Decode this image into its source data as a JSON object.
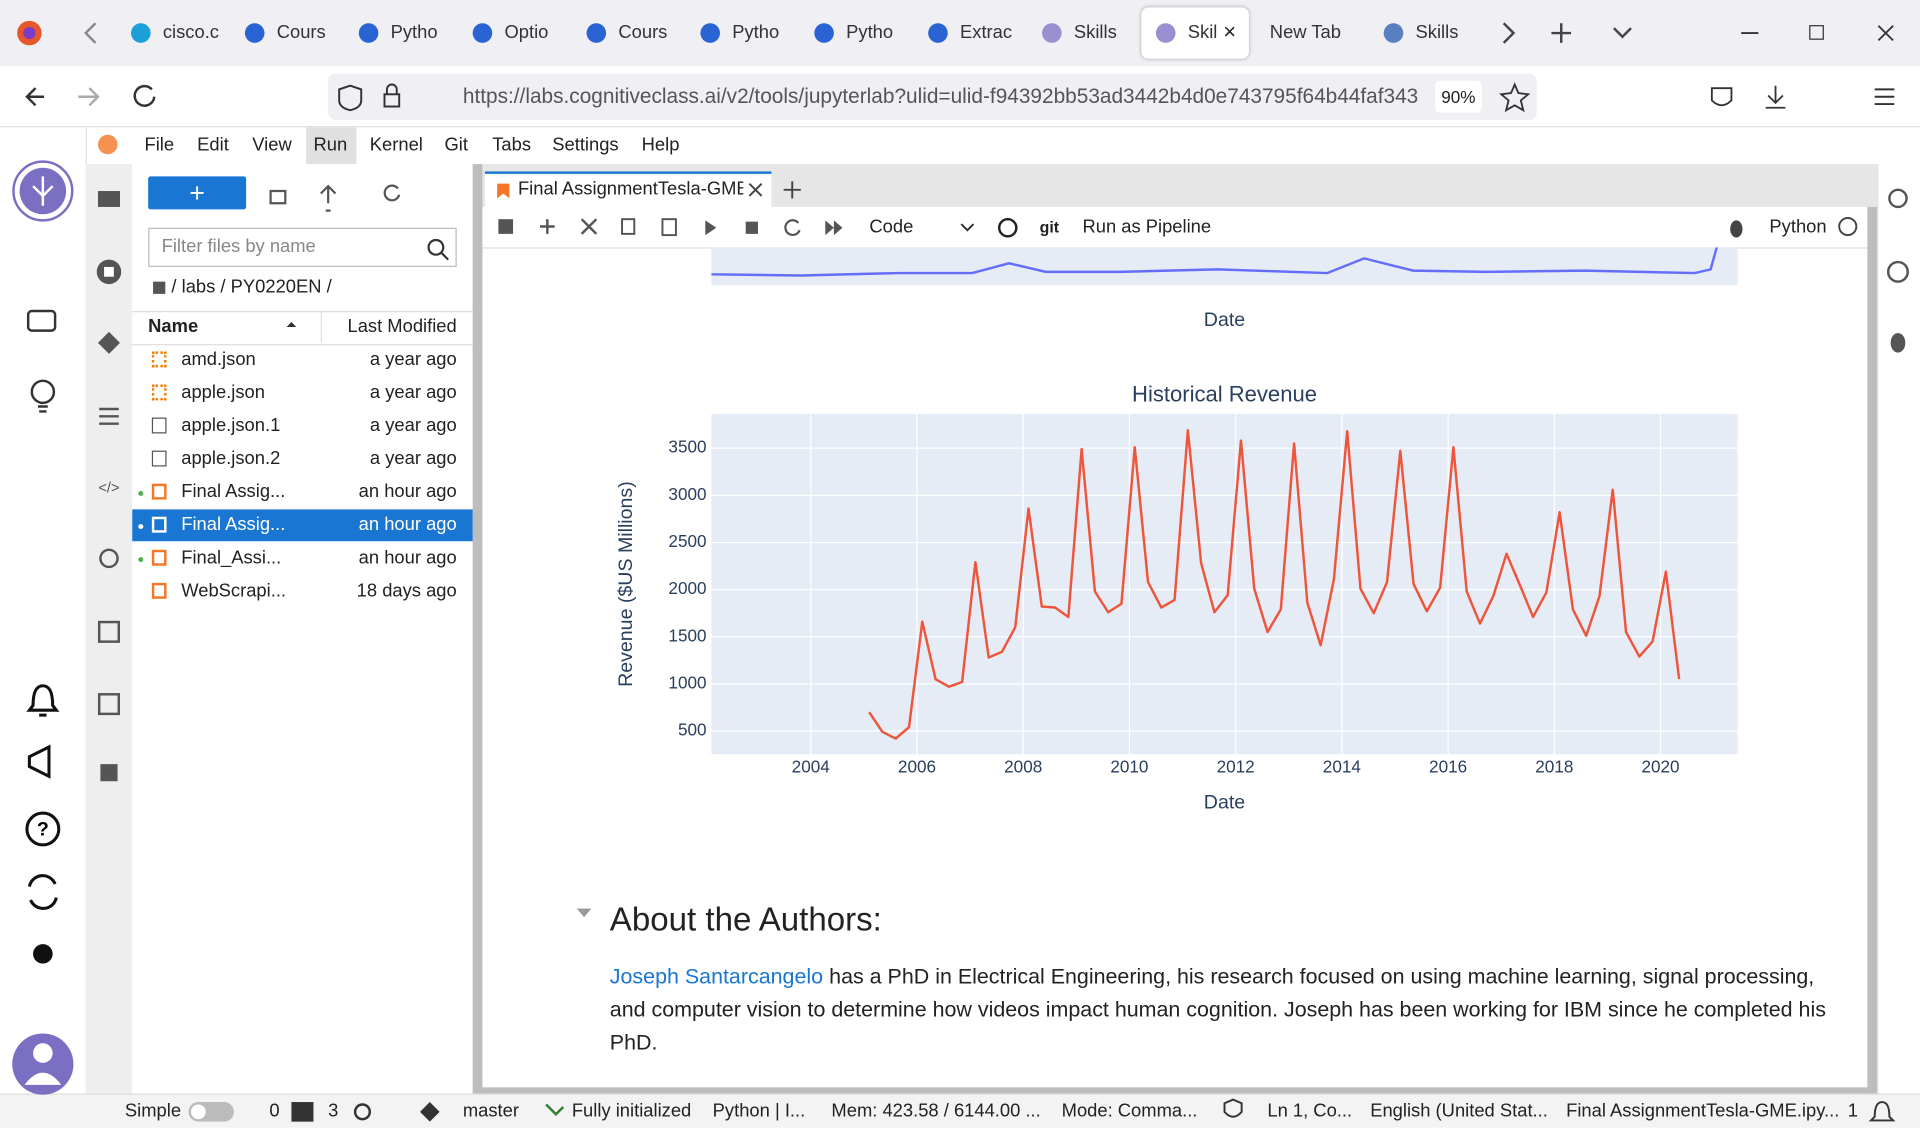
{
  "browser": {
    "tabs": [
      {
        "label": "cisco.c",
        "color": "#1ba0d7"
      },
      {
        "label": "Cours",
        "color": "#2a63d4"
      },
      {
        "label": "Pytho",
        "color": "#2a63d4"
      },
      {
        "label": "Optio",
        "color": "#2a63d4"
      },
      {
        "label": "Cours",
        "color": "#2a63d4"
      },
      {
        "label": "Pytho",
        "color": "#2a63d4"
      },
      {
        "label": "Pytho",
        "color": "#2a63d4"
      },
      {
        "label": "Extrac",
        "color": "#2a63d4"
      },
      {
        "label": "Skills",
        "color": "#9a8fd0"
      },
      {
        "label": "Skil",
        "color": "#9a8fd0"
      },
      {
        "label": "New Tab",
        "color": null
      },
      {
        "label": "Skills",
        "color": "#5a7fc0"
      }
    ],
    "active_tab": 9,
    "url": "https://labs.cognitiveclass.ai/v2/tools/jupyterlab?ulid=ulid-f94392bb53ad3442b4d0e743795f64b44faf343",
    "zoom": "90%"
  },
  "menu": [
    "File",
    "Edit",
    "View",
    "Run",
    "Kernel",
    "Git",
    "Tabs",
    "Settings",
    "Help"
  ],
  "active_menu": 3,
  "file_browser": {
    "filter_placeholder": "Filter files by name",
    "breadcrumb": "/ labs / PY0220EN /",
    "columns": [
      "Name",
      "Last Modified"
    ],
    "files": [
      {
        "name": "amd.json",
        "modified": "a year ago",
        "running": false
      },
      {
        "name": "apple.json",
        "modified": "a year ago",
        "running": false
      },
      {
        "name": "apple.json.1",
        "modified": "a year ago",
        "running": false
      },
      {
        "name": "apple.json.2",
        "modified": "a year ago",
        "running": false
      },
      {
        "name": "Final Assig...",
        "modified": "an hour ago",
        "running": true
      },
      {
        "name": "Final Assig...",
        "modified": "an hour ago",
        "running": true
      },
      {
        "name": "Final_Assi...",
        "modified": "an hour ago",
        "running": true
      },
      {
        "name": "WebScrapi...",
        "modified": "18 days ago",
        "running": false
      }
    ],
    "selected": 5
  },
  "notebook": {
    "tab": "Final AssignmentTesla-GME.",
    "cell_type": "Code",
    "git": "git",
    "pipeline": "Run as Pipeline",
    "kernel": "Python",
    "upper_plot_x_label": "Date",
    "heading": "About the Authors:",
    "author_link": "Joseph Santarcangelo",
    "paragraph": "has a PhD in Electrical Engineering, his research focused on using machine learning, signal processing, and computer vision to determine how videos impact human cognition. Joseph has been working for IBM since he completed his PhD."
  },
  "chart_data": {
    "type": "line",
    "title": "Historical Revenue",
    "x_label": "Date",
    "y_label": "Revenue ($US Millions)",
    "color": "#ef553b",
    "grid": true,
    "x": [
      2005.1,
      2005.35,
      2005.6,
      2005.85,
      2006.1,
      2006.35,
      2006.6,
      2006.85,
      2007.1,
      2007.35,
      2007.6,
      2007.85,
      2008.1,
      2008.35,
      2008.6,
      2008.85,
      2009.1,
      2009.35,
      2009.6,
      2009.85,
      2010.1,
      2010.35,
      2010.6,
      2010.85,
      2011.1,
      2011.35,
      2011.6,
      2011.85,
      2012.1,
      2012.35,
      2012.6,
      2012.85,
      2013.1,
      2013.35,
      2013.6,
      2013.85,
      2014.1,
      2014.35,
      2014.6,
      2014.85,
      2015.1,
      2015.35,
      2015.6,
      2015.85,
      2016.1,
      2016.35,
      2016.6,
      2016.85,
      2017.1,
      2017.35,
      2017.6,
      2017.85,
      2018.1,
      2018.35,
      2018.6,
      2018.85,
      2019.1,
      2019.35,
      2019.6,
      2019.85,
      2020.1,
      2020.35
    ],
    "values": [
      700,
      490,
      420,
      540,
      1660,
      1050,
      970,
      1020,
      2290,
      1280,
      1340,
      1600,
      2860,
      1820,
      1810,
      1710,
      3490,
      1980,
      1760,
      1850,
      3510,
      2080,
      1810,
      1890,
      3690,
      2280,
      1760,
      1940,
      3580,
      2010,
      1550,
      1790,
      3550,
      1860,
      1410,
      2110,
      3680,
      2010,
      1750,
      2080,
      3470,
      2060,
      1770,
      2020,
      3510,
      1980,
      1640,
      1930,
      2380,
      2050,
      1710,
      1970,
      2820,
      1790,
      1510,
      1930,
      3060,
      1550,
      1290,
      1450,
      2190,
      1050
    ],
    "xlim": [
      2002.13,
      2021.45
    ],
    "xticks": [
      2004,
      2006,
      2008,
      2010,
      2012,
      2014,
      2016,
      2018,
      2020
    ],
    "ylim": [
      253,
      3864
    ],
    "yticks": [
      500,
      1000,
      1500,
      2000,
      2500,
      3000,
      3500
    ]
  },
  "status_bar": {
    "mode": "Simple",
    "terminals": "0",
    "kernels": "3",
    "branch": "master",
    "state": "Fully initialized",
    "kernel": "Python | I...",
    "memory": "Mem: 423.58 / 6144.00 ...",
    "edit_mode": "Mode: Comma...",
    "cursor": "Ln 1, Co...",
    "language": "English (United Stat...",
    "file": "Final AssignmentTesla-GME.ipy...",
    "notifications": "1"
  }
}
